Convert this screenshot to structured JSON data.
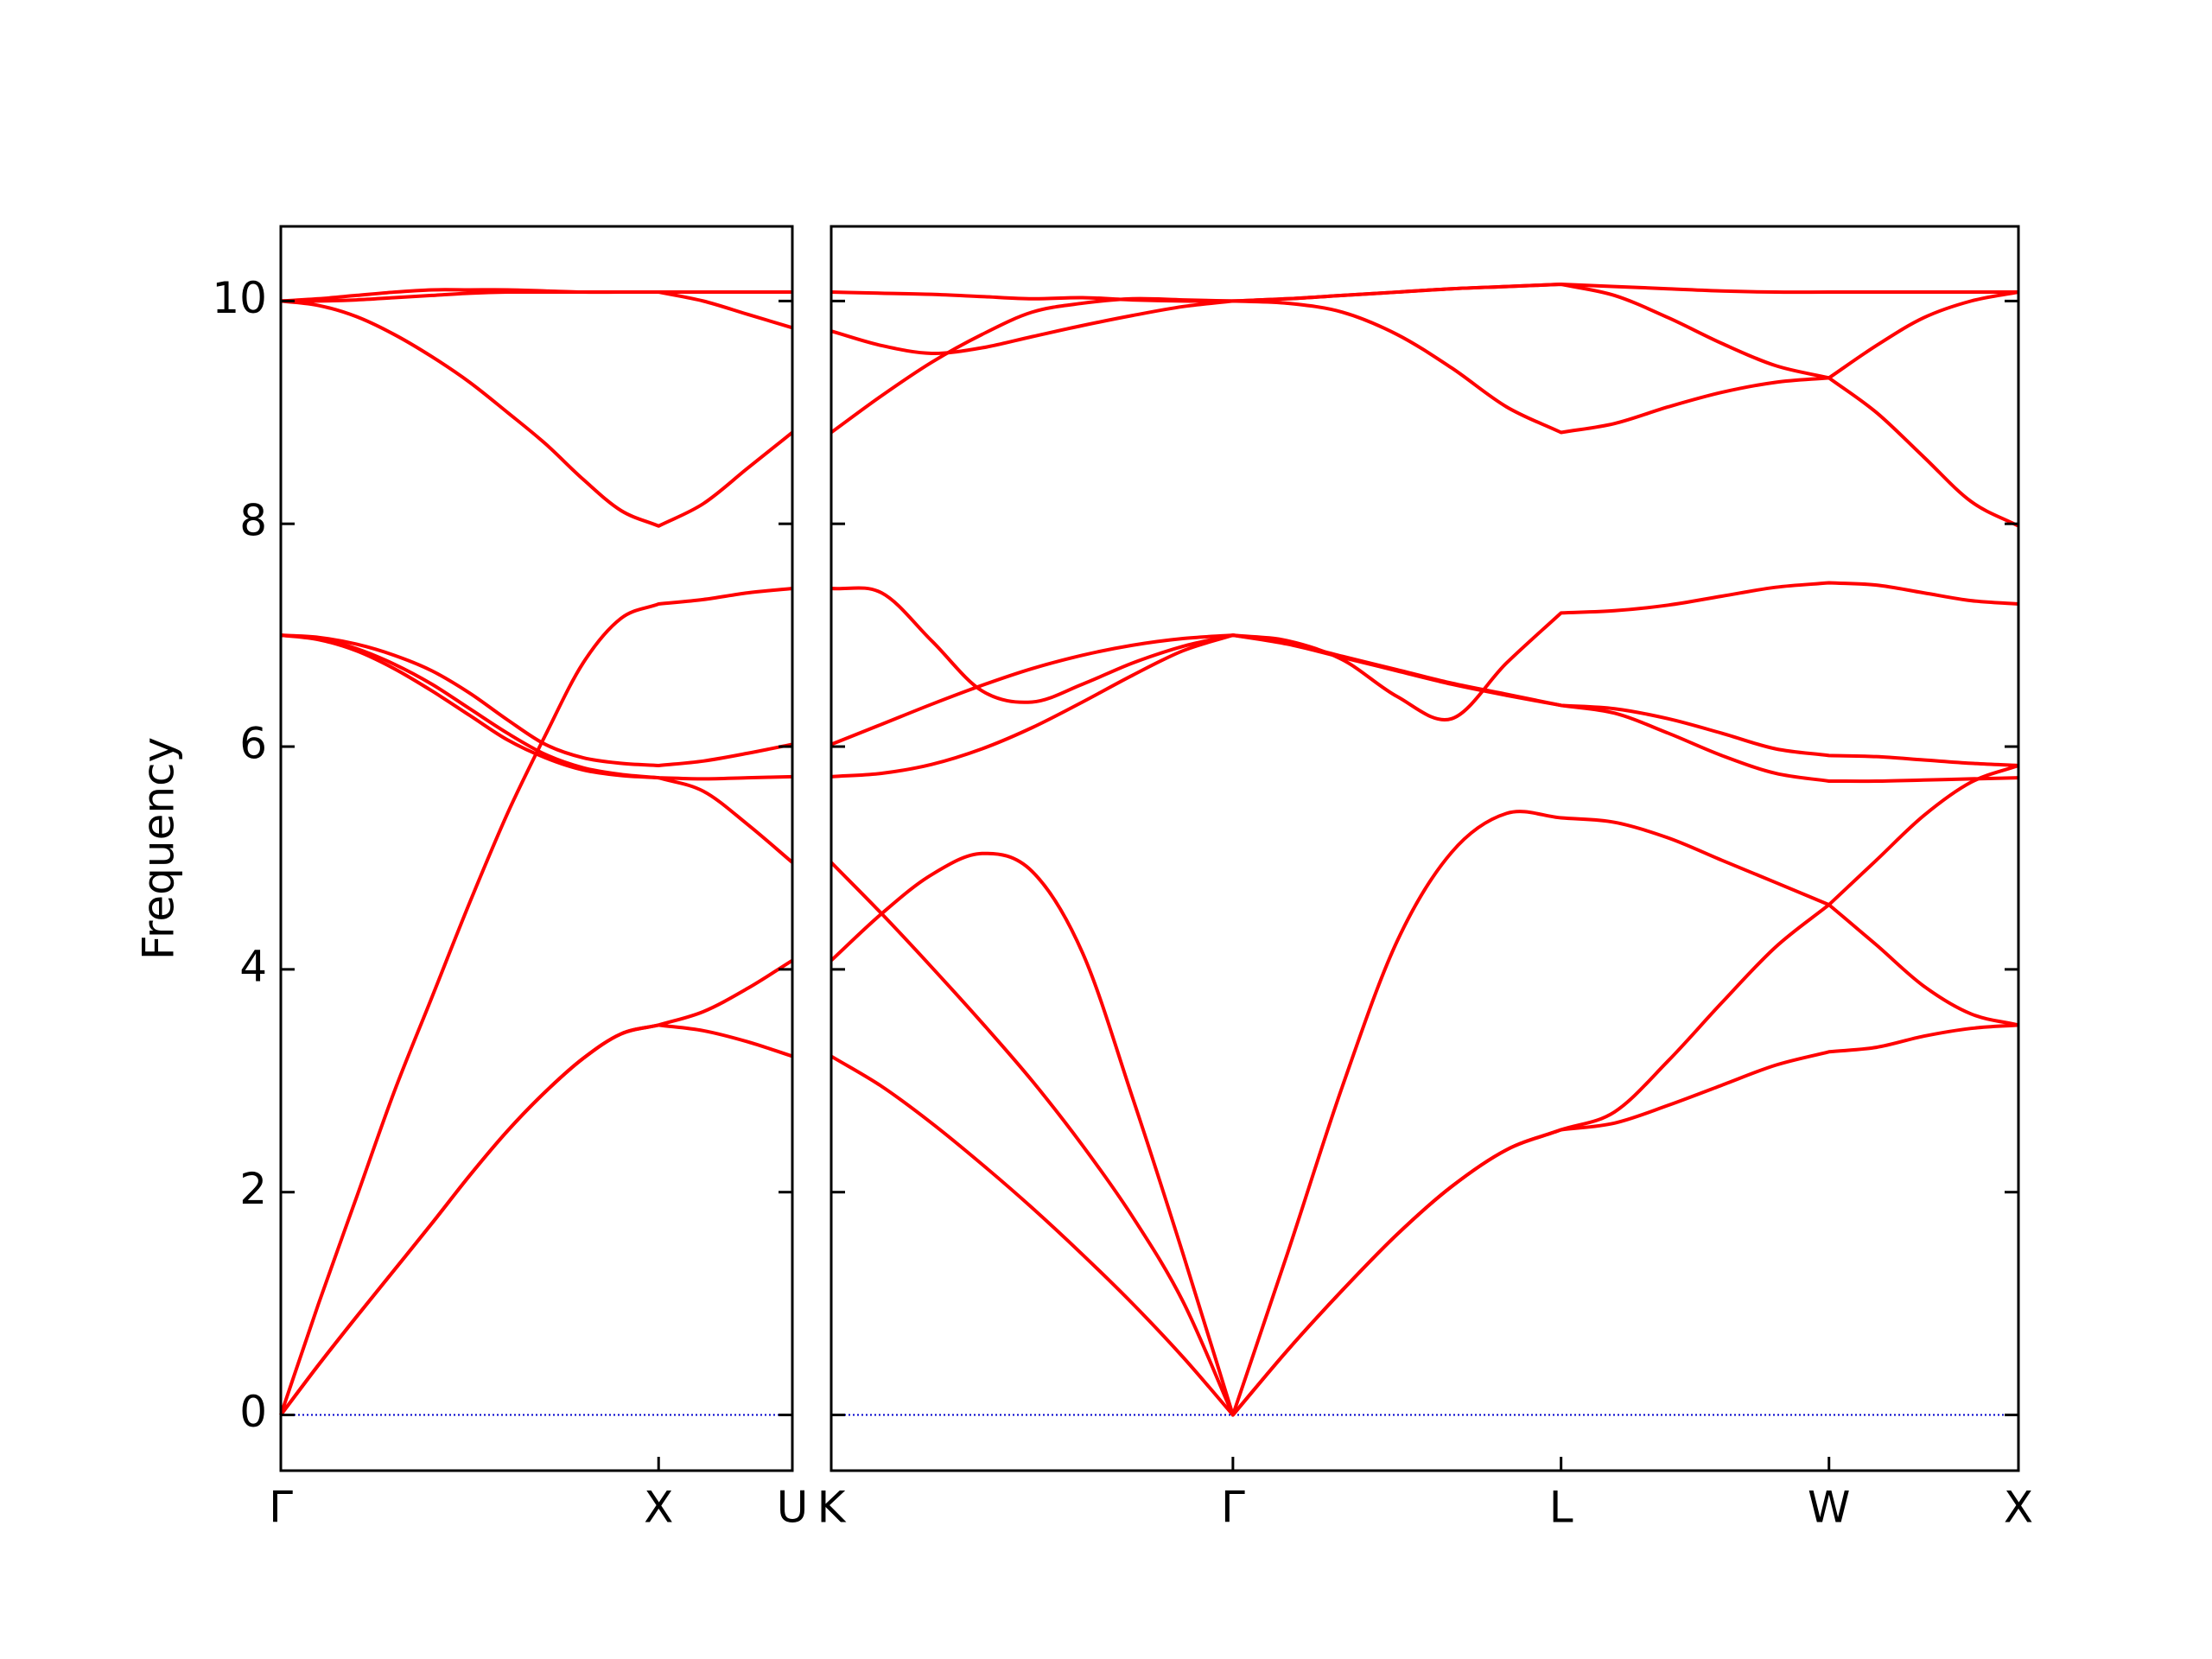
{
  "chart_data": [
    {
      "type": "line",
      "ylabel": "Frequency",
      "show_ytick_labels": true,
      "x": [
        0,
        0.1,
        0.2,
        0.3,
        0.4,
        0.5,
        0.6,
        0.7,
        0.8,
        0.9,
        1.0,
        1.118,
        1.236,
        1.354
      ],
      "xlim": [
        0,
        1.354
      ],
      "xticks": [
        {
          "value": 0,
          "label": "Γ"
        },
        {
          "value": 1.0,
          "label": "X"
        },
        {
          "value": 1.354,
          "label": "U"
        }
      ],
      "ylim": [
        -0.5,
        10.67
      ],
      "yticks": [
        0,
        2,
        4,
        6,
        8,
        10
      ],
      "reference_line": {
        "value": 0,
        "color": "#0000cd"
      },
      "series": [
        {
          "color": "#ff0000",
          "values": [
            0,
            0.45,
            0.88,
            1.3,
            1.72,
            2.15,
            2.55,
            2.9,
            3.2,
            3.42,
            3.5,
            3.45,
            3.35,
            3.22
          ]
        },
        {
          "color": "#ff0000",
          "values": [
            0,
            0.45,
            0.88,
            1.3,
            1.72,
            2.15,
            2.55,
            2.9,
            3.2,
            3.42,
            3.5,
            3.62,
            3.83,
            4.08
          ]
        },
        {
          "color": "#ff0000",
          "values": [
            0,
            1.0,
            1.95,
            2.9,
            3.75,
            4.6,
            5.4,
            6.1,
            6.75,
            7.15,
            7.28,
            7.32,
            7.38,
            7.42
          ]
        },
        {
          "color": "#ff0000",
          "values": [
            7.0,
            6.96,
            6.86,
            6.7,
            6.5,
            6.28,
            6.06,
            5.9,
            5.79,
            5.74,
            5.72,
            5.71,
            5.72,
            5.73
          ]
        },
        {
          "color": "#ff0000",
          "values": [
            7.0,
            6.97,
            6.88,
            6.74,
            6.56,
            6.34,
            6.12,
            5.93,
            5.81,
            5.75,
            5.72,
            5.6,
            5.3,
            4.96
          ]
        },
        {
          "color": "#ff0000",
          "values": [
            7.0,
            6.98,
            6.92,
            6.82,
            6.68,
            6.48,
            6.24,
            6.02,
            5.9,
            5.85,
            5.83,
            5.87,
            5.94,
            6.02
          ]
        },
        {
          "color": "#ff0000",
          "values": [
            10.0,
            9.96,
            9.86,
            9.7,
            9.5,
            9.27,
            9.0,
            8.72,
            8.4,
            8.12,
            7.98,
            8.18,
            8.5,
            8.82
          ]
        },
        {
          "color": "#ff0000",
          "values": [
            10.0,
            10.02,
            10.05,
            10.08,
            10.1,
            10.1,
            10.1,
            10.09,
            10.08,
            10.08,
            10.08,
            10.08,
            10.08,
            10.08
          ]
        },
        {
          "color": "#ff0000",
          "values": [
            10.0,
            10.0,
            10.01,
            10.03,
            10.05,
            10.07,
            10.08,
            10.08,
            10.08,
            10.08,
            10.08,
            10.0,
            9.88,
            9.76
          ]
        }
      ]
    },
    {
      "type": "line",
      "show_ytick_labels": false,
      "x": [
        1.354,
        1.487,
        1.619,
        1.752,
        1.884,
        2.017,
        2.149,
        2.282,
        2.414,
        2.558,
        2.703,
        2.847,
        2.991,
        3.136,
        3.28,
        3.421,
        3.563,
        3.704,
        3.846,
        3.987,
        4.112,
        4.237,
        4.362,
        4.487
      ],
      "xlim": [
        1.354,
        4.487
      ],
      "xticks": [
        {
          "value": 1.354,
          "label": "K"
        },
        {
          "value": 2.414,
          "label": "Γ"
        },
        {
          "value": 3.28,
          "label": "L"
        },
        {
          "value": 3.987,
          "label": "W"
        },
        {
          "value": 4.487,
          "label": "X"
        }
      ],
      "ylim": [
        -0.5,
        10.67
      ],
      "yticks": [
        0,
        2,
        4,
        6,
        8,
        10
      ],
      "reference_line": {
        "value": 0,
        "color": "#0000cd"
      },
      "series": [
        {
          "color": "#ff0000",
          "values": [
            3.22,
            2.95,
            2.62,
            2.25,
            1.86,
            1.44,
            1.0,
            0.52,
            0,
            0.58,
            1.12,
            1.62,
            2.05,
            2.38,
            2.56,
            2.62,
            2.78,
            2.96,
            3.14,
            3.26,
            3.3,
            3.4,
            3.47,
            3.5
          ]
        },
        {
          "color": "#ff0000",
          "values": [
            4.96,
            4.5,
            4.02,
            3.52,
            3.0,
            2.42,
            1.78,
            1.02,
            0,
            0.58,
            1.12,
            1.62,
            2.05,
            2.38,
            2.56,
            2.72,
            3.18,
            3.7,
            4.2,
            4.58,
            4.98,
            5.38,
            5.68,
            5.83
          ]
        },
        {
          "color": "#ff0000",
          "values": [
            4.08,
            4.5,
            4.85,
            5.04,
            4.88,
            4.15,
            2.85,
            1.45,
            0,
            1.45,
            2.95,
            4.25,
            5.05,
            5.4,
            5.36,
            5.32,
            5.18,
            4.98,
            4.78,
            4.58,
            4.22,
            3.85,
            3.6,
            3.5
          ]
        },
        {
          "color": "#ff0000",
          "values": [
            7.42,
            7.38,
            6.95,
            6.5,
            6.4,
            6.56,
            6.75,
            6.9,
            7.0,
            6.95,
            6.78,
            6.45,
            6.25,
            6.75,
            7.2,
            7.22,
            7.27,
            7.35,
            7.43,
            7.47,
            7.45,
            7.38,
            7.31,
            7.28
          ]
        },
        {
          "color": "#ff0000",
          "values": [
            6.02,
            6.2,
            6.38,
            6.55,
            6.7,
            6.82,
            6.91,
            6.97,
            7.0,
            6.92,
            6.8,
            6.68,
            6.56,
            6.46,
            6.37,
            6.34,
            6.25,
            6.12,
            5.98,
            5.92,
            5.91,
            5.88,
            5.85,
            5.83
          ]
        },
        {
          "color": "#ff0000",
          "values": [
            5.73,
            5.76,
            5.84,
            5.98,
            6.17,
            6.4,
            6.64,
            6.86,
            7.0,
            6.93,
            6.81,
            6.69,
            6.57,
            6.47,
            6.37,
            6.3,
            6.12,
            5.92,
            5.76,
            5.69,
            5.69,
            5.7,
            5.71,
            5.72
          ]
        },
        {
          "color": "#ff0000",
          "values": [
            8.82,
            9.15,
            9.45,
            9.7,
            9.9,
            9.98,
            10.02,
            10.01,
            10.0,
            9.98,
            9.9,
            9.7,
            9.4,
            9.05,
            8.82,
            8.9,
            9.05,
            9.18,
            9.27,
            9.31,
            9.0,
            8.6,
            8.2,
            7.98
          ]
        },
        {
          "color": "#ff0000",
          "values": [
            9.73,
            9.6,
            9.53,
            9.58,
            9.68,
            9.78,
            9.87,
            9.95,
            10.0,
            10.02,
            10.05,
            10.08,
            10.11,
            10.13,
            10.15,
            10.05,
            9.85,
            9.62,
            9.42,
            9.31,
            9.6,
            9.85,
            10.0,
            10.08
          ]
        },
        {
          "color": "#ff0000",
          "values": [
            10.08,
            10.07,
            10.06,
            10.04,
            10.02,
            10.03,
            10.01,
            10.0,
            10.0,
            10.02,
            10.05,
            10.08,
            10.11,
            10.13,
            10.15,
            10.13,
            10.11,
            10.09,
            10.08,
            10.08,
            10.08,
            10.08,
            10.08,
            10.08
          ]
        }
      ]
    }
  ]
}
